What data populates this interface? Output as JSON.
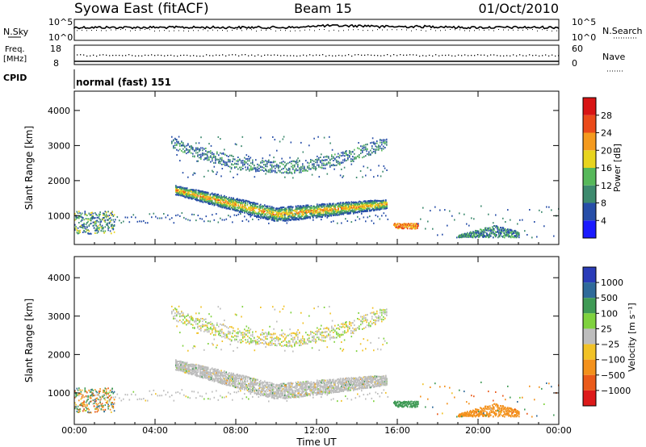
{
  "header": {
    "station": "Syowa East (fitACF)",
    "beam": "Beam 15",
    "date": "01/Oct/2010"
  },
  "housekeeping": {
    "nsky_label": "N.Sky",
    "nsearch_label": "N.Search",
    "freq_label_1": "Freq.",
    "freq_label_2": "[MHz]",
    "nave_label": "Nave",
    "cpid_label": "CPID",
    "cpid_value": "normal (fast) 151",
    "noise_ticks": [
      "10^5",
      "10^0"
    ],
    "freq_ticks": [
      "18",
      "8"
    ],
    "nave_ticks": [
      "60",
      "0"
    ]
  },
  "chart_data": [
    {
      "type": "heatmap",
      "name": "power",
      "xlabel": "Time UT",
      "ylabel": "Slant Range [km]",
      "x_ticks": [
        "00:00",
        "04:00",
        "08:00",
        "12:00",
        "16:00",
        "20:00",
        "00:00"
      ],
      "xlim_hours": [
        0,
        24
      ],
      "y_ticks": [
        1000,
        2000,
        3000,
        4000
      ],
      "ylim": [
        180,
        4550
      ],
      "colorbar": {
        "label": "Power [dB]",
        "ticks": [
          "4",
          "8",
          "12",
          "16",
          "20",
          "24",
          "28"
        ],
        "colors": [
          "#1a1aff",
          "#274ea8",
          "#3d8a6e",
          "#56b85a",
          "#e8d41e",
          "#f49a1e",
          "#ea4a1a",
          "#d81414"
        ]
      },
      "features": [
        {
          "desc": "main echo band",
          "x": [
            5.0,
            15.5
          ],
          "y": [
            800,
            1900
          ],
          "value_db": [
            4,
            28
          ]
        },
        {
          "desc": "upper diffuse echoes",
          "x": [
            4.8,
            15.5
          ],
          "y": [
            2200,
            3300
          ],
          "value_db": [
            4,
            12
          ]
        },
        {
          "desc": "early low echoes",
          "x": [
            0.0,
            2.0
          ],
          "y": [
            500,
            1100
          ],
          "value_db": [
            4,
            20
          ]
        },
        {
          "desc": "patch near 16UT",
          "x": [
            15.8,
            17.0
          ],
          "y": [
            650,
            800
          ],
          "value_db": [
            20,
            28
          ]
        },
        {
          "desc": "evening patch",
          "x": [
            19.0,
            22.0
          ],
          "y": [
            400,
            750
          ],
          "value_db": [
            4,
            16
          ]
        }
      ]
    },
    {
      "type": "heatmap",
      "name": "velocity",
      "xlabel": "Time UT",
      "ylabel": "Slant Range [km]",
      "x_ticks": [
        "00:00",
        "04:00",
        "08:00",
        "12:00",
        "16:00",
        "20:00",
        "00:00"
      ],
      "xlim_hours": [
        0,
        24
      ],
      "y_ticks": [
        1000,
        2000,
        3000,
        4000
      ],
      "ylim": [
        180,
        4550
      ],
      "colorbar": {
        "label": "Velocity [m s⁻¹]",
        "ticks": [
          "1000",
          "500",
          "100",
          "25",
          "−25",
          "−100",
          "−500",
          "−1000"
        ],
        "colors": [
          "#2a3cb8",
          "#2f6a9a",
          "#3f9a55",
          "#7fd23e",
          "#bdbdbd",
          "#f1c227",
          "#f3911c",
          "#ea5a1a",
          "#dd1a1a"
        ]
      },
      "features": [
        {
          "desc": "main band, mostly ground scatter",
          "x": [
            5.0,
            15.5
          ],
          "y": [
            800,
            1900
          ],
          "velocity": [
            -25,
            25
          ]
        },
        {
          "desc": "upper diffuse echoes",
          "x": [
            4.8,
            15.5
          ],
          "y": [
            2200,
            3300
          ],
          "velocity": [
            -100,
            100
          ]
        },
        {
          "desc": "patch near 16UT",
          "x": [
            15.8,
            17.0
          ],
          "y": [
            650,
            800
          ],
          "velocity": [
            100,
            500
          ]
        },
        {
          "desc": "evening patch",
          "x": [
            19.0,
            22.0
          ],
          "y": [
            400,
            750
          ],
          "velocity": [
            -500,
            -100
          ]
        }
      ]
    }
  ]
}
